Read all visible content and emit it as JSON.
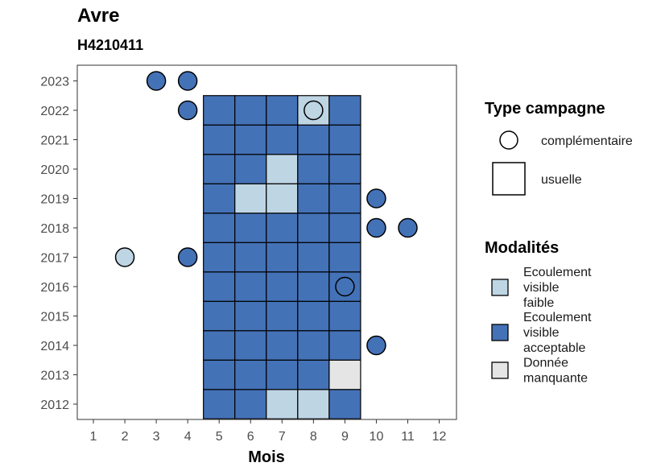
{
  "chart_data": {
    "type": "heatmap",
    "title": "Avre",
    "subtitle": "H4210411",
    "xlabel": "Mois",
    "ylabel": "",
    "x_ticks": [
      1,
      2,
      3,
      4,
      5,
      6,
      7,
      8,
      9,
      10,
      11,
      12
    ],
    "y_ticks": [
      2012,
      2013,
      2014,
      2015,
      2016,
      2017,
      2018,
      2019,
      2020,
      2021,
      2022,
      2023
    ],
    "colors": {
      "Ecoulement visible faible": "#bed5e4",
      "Ecoulement visible acceptable": "#4472b7",
      "Donnée manquante": "#e5e5e5"
    },
    "legend_type": {
      "title": "Type campagne",
      "items": [
        {
          "label": "complémentaire",
          "shape": "circle"
        },
        {
          "label": "usuelle",
          "shape": "square"
        }
      ]
    },
    "legend_modalites": {
      "title": "Modalités",
      "items": [
        {
          "lines": [
            "Ecoulement",
            "visible",
            "faible"
          ],
          "key": "Ecoulement visible faible"
        },
        {
          "lines": [
            "Ecoulement",
            "visible",
            "acceptable"
          ],
          "key": "Ecoulement visible acceptable"
        },
        {
          "lines": [
            "Donnée",
            "manquante"
          ],
          "key": "Donnée manquante"
        }
      ]
    },
    "usuelle": [
      {
        "year": 2012,
        "month": 5,
        "m": "Ecoulement visible acceptable"
      },
      {
        "year": 2012,
        "month": 6,
        "m": "Ecoulement visible acceptable"
      },
      {
        "year": 2012,
        "month": 7,
        "m": "Ecoulement visible faible"
      },
      {
        "year": 2012,
        "month": 8,
        "m": "Ecoulement visible faible"
      },
      {
        "year": 2012,
        "month": 9,
        "m": "Ecoulement visible acceptable"
      },
      {
        "year": 2013,
        "month": 5,
        "m": "Ecoulement visible acceptable"
      },
      {
        "year": 2013,
        "month": 6,
        "m": "Ecoulement visible acceptable"
      },
      {
        "year": 2013,
        "month": 7,
        "m": "Ecoulement visible acceptable"
      },
      {
        "year": 2013,
        "month": 8,
        "m": "Ecoulement visible acceptable"
      },
      {
        "year": 2013,
        "month": 9,
        "m": "Donnée manquante"
      },
      {
        "year": 2014,
        "month": 5,
        "m": "Ecoulement visible acceptable"
      },
      {
        "year": 2014,
        "month": 6,
        "m": "Ecoulement visible acceptable"
      },
      {
        "year": 2014,
        "month": 7,
        "m": "Ecoulement visible acceptable"
      },
      {
        "year": 2014,
        "month": 8,
        "m": "Ecoulement visible acceptable"
      },
      {
        "year": 2014,
        "month": 9,
        "m": "Ecoulement visible acceptable"
      },
      {
        "year": 2015,
        "month": 5,
        "m": "Ecoulement visible acceptable"
      },
      {
        "year": 2015,
        "month": 6,
        "m": "Ecoulement visible acceptable"
      },
      {
        "year": 2015,
        "month": 7,
        "m": "Ecoulement visible acceptable"
      },
      {
        "year": 2015,
        "month": 8,
        "m": "Ecoulement visible acceptable"
      },
      {
        "year": 2015,
        "month": 9,
        "m": "Ecoulement visible acceptable"
      },
      {
        "year": 2016,
        "month": 5,
        "m": "Ecoulement visible acceptable"
      },
      {
        "year": 2016,
        "month": 6,
        "m": "Ecoulement visible acceptable"
      },
      {
        "year": 2016,
        "month": 7,
        "m": "Ecoulement visible acceptable"
      },
      {
        "year": 2016,
        "month": 8,
        "m": "Ecoulement visible acceptable"
      },
      {
        "year": 2016,
        "month": 9,
        "m": "Ecoulement visible acceptable"
      },
      {
        "year": 2017,
        "month": 5,
        "m": "Ecoulement visible acceptable"
      },
      {
        "year": 2017,
        "month": 6,
        "m": "Ecoulement visible acceptable"
      },
      {
        "year": 2017,
        "month": 7,
        "m": "Ecoulement visible acceptable"
      },
      {
        "year": 2017,
        "month": 8,
        "m": "Ecoulement visible acceptable"
      },
      {
        "year": 2017,
        "month": 9,
        "m": "Ecoulement visible acceptable"
      },
      {
        "year": 2018,
        "month": 5,
        "m": "Ecoulement visible acceptable"
      },
      {
        "year": 2018,
        "month": 6,
        "m": "Ecoulement visible acceptable"
      },
      {
        "year": 2018,
        "month": 7,
        "m": "Ecoulement visible acceptable"
      },
      {
        "year": 2018,
        "month": 8,
        "m": "Ecoulement visible acceptable"
      },
      {
        "year": 2018,
        "month": 9,
        "m": "Ecoulement visible acceptable"
      },
      {
        "year": 2019,
        "month": 5,
        "m": "Ecoulement visible acceptable"
      },
      {
        "year": 2019,
        "month": 6,
        "m": "Ecoulement visible faible"
      },
      {
        "year": 2019,
        "month": 7,
        "m": "Ecoulement visible faible"
      },
      {
        "year": 2019,
        "month": 8,
        "m": "Ecoulement visible acceptable"
      },
      {
        "year": 2019,
        "month": 9,
        "m": "Ecoulement visible acceptable"
      },
      {
        "year": 2020,
        "month": 5,
        "m": "Ecoulement visible acceptable"
      },
      {
        "year": 2020,
        "month": 6,
        "m": "Ecoulement visible acceptable"
      },
      {
        "year": 2020,
        "month": 7,
        "m": "Ecoulement visible faible"
      },
      {
        "year": 2020,
        "month": 8,
        "m": "Ecoulement visible acceptable"
      },
      {
        "year": 2020,
        "month": 9,
        "m": "Ecoulement visible acceptable"
      },
      {
        "year": 2021,
        "month": 5,
        "m": "Ecoulement visible acceptable"
      },
      {
        "year": 2021,
        "month": 6,
        "m": "Ecoulement visible acceptable"
      },
      {
        "year": 2021,
        "month": 7,
        "m": "Ecoulement visible acceptable"
      },
      {
        "year": 2021,
        "month": 8,
        "m": "Ecoulement visible acceptable"
      },
      {
        "year": 2021,
        "month": 9,
        "m": "Ecoulement visible acceptable"
      },
      {
        "year": 2022,
        "month": 5,
        "m": "Ecoulement visible acceptable"
      },
      {
        "year": 2022,
        "month": 6,
        "m": "Ecoulement visible acceptable"
      },
      {
        "year": 2022,
        "month": 7,
        "m": "Ecoulement visible acceptable"
      },
      {
        "year": 2022,
        "month": 8,
        "m": "Ecoulement visible faible"
      },
      {
        "year": 2022,
        "month": 9,
        "m": "Ecoulement visible acceptable"
      }
    ],
    "complementaire": [
      {
        "year": 2023,
        "month": 3,
        "m": "Ecoulement visible acceptable"
      },
      {
        "year": 2023,
        "month": 4,
        "m": "Ecoulement visible acceptable"
      },
      {
        "year": 2022,
        "month": 4,
        "m": "Ecoulement visible acceptable"
      },
      {
        "year": 2022,
        "month": 8,
        "m": "Ecoulement visible faible"
      },
      {
        "year": 2019,
        "month": 10,
        "m": "Ecoulement visible acceptable"
      },
      {
        "year": 2018,
        "month": 10,
        "m": "Ecoulement visible acceptable"
      },
      {
        "year": 2018,
        "month": 11,
        "m": "Ecoulement visible acceptable"
      },
      {
        "year": 2017,
        "month": 2,
        "m": "Ecoulement visible faible"
      },
      {
        "year": 2017,
        "month": 4,
        "m": "Ecoulement visible acceptable"
      },
      {
        "year": 2016,
        "month": 9,
        "m": "Ecoulement visible acceptable"
      },
      {
        "year": 2014,
        "month": 10,
        "m": "Ecoulement visible acceptable"
      }
    ]
  }
}
